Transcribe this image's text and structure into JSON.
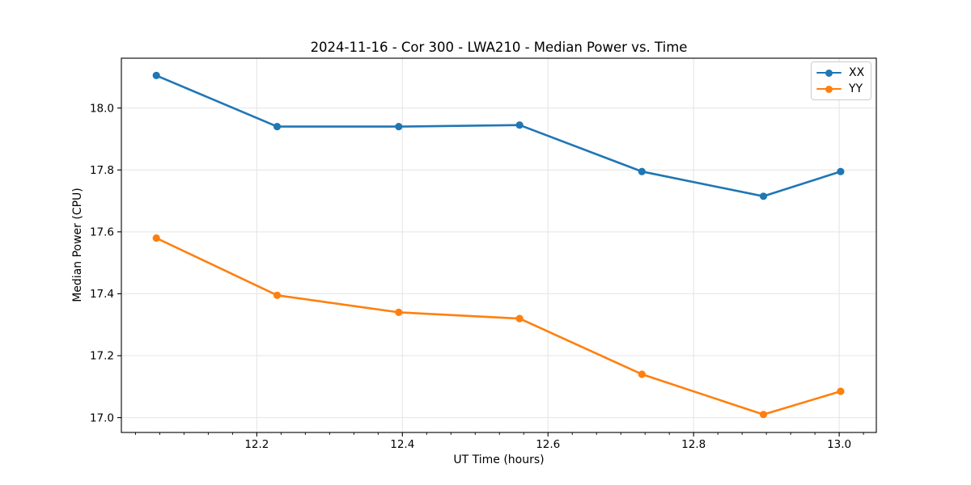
{
  "chart": {
    "title": "2024-11-16 - Cor 300 - LWA210 - Median Power vs. Time",
    "xlabel": "UT Time (hours)",
    "ylabel": "Median Power (CPU)"
  },
  "chart_data": {
    "type": "line",
    "title": "2024-11-16 - Cor 300 - LWA210 - Median Power vs. Time",
    "xlabel": "UT Time (hours)",
    "ylabel": "Median Power (CPU)",
    "x": [
      12.062,
      12.228,
      12.395,
      12.561,
      12.729,
      12.896,
      13.002
    ],
    "series": [
      {
        "name": "XX",
        "color": "#1f77b4",
        "values": [
          18.105,
          17.94,
          17.94,
          17.945,
          17.795,
          17.715,
          17.795
        ]
      },
      {
        "name": "YY",
        "color": "#ff7f0e",
        "values": [
          17.58,
          17.395,
          17.34,
          17.32,
          17.14,
          17.01,
          17.085
        ]
      }
    ],
    "xlim": [
      12.014,
      13.051
    ],
    "ylim": [
      16.952,
      18.161
    ],
    "xticks": [
      12.2,
      12.4,
      12.6,
      12.8,
      13.0
    ],
    "xtick_labels": [
      "12.2",
      "12.4",
      "12.6",
      "12.8",
      "13.0"
    ],
    "x_minor_divisions": 6,
    "yticks": [
      17.0,
      17.2,
      17.4,
      17.6,
      17.8,
      18.0
    ],
    "ytick_labels": [
      "17.0",
      "17.2",
      "17.4",
      "17.6",
      "17.8",
      "18.0"
    ],
    "grid": true,
    "legend_position": "upper right",
    "marker": "circle"
  },
  "colors": {
    "background": "#ffffff",
    "grid": "#e4e4e4",
    "spine": "#000000",
    "tick": "#000000",
    "legend_border": "#cccccc",
    "series_xx": "#1f77b4",
    "series_yy": "#ff7f0e"
  }
}
